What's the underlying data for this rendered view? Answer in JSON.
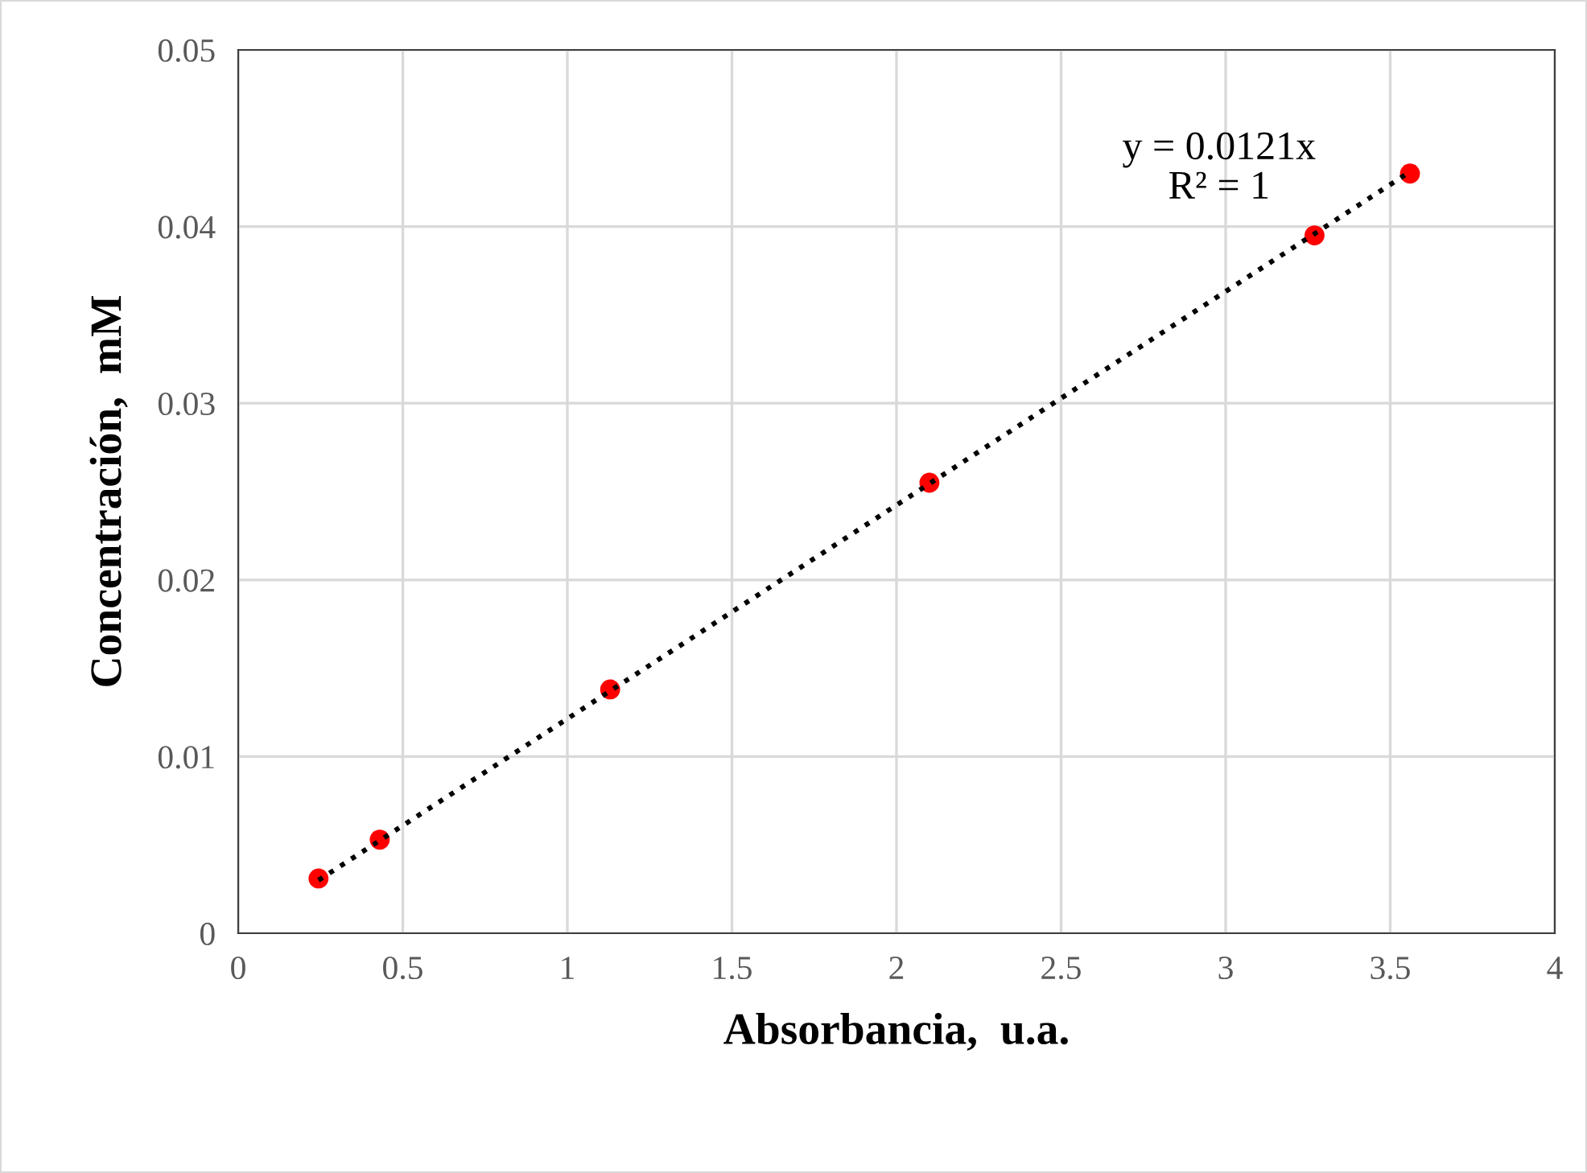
{
  "chart_data": {
    "type": "scatter",
    "xlabel": "Absorbancia,  u.a.",
    "ylabel": "Concentración,  mM",
    "x": [
      0.244,
      0.43,
      1.13,
      2.1,
      3.27,
      3.56
    ],
    "series": [
      {
        "color": "#ff0000",
        "marker": "circle",
        "values": [
          0.0031,
          0.0053,
          0.0138,
          0.0255,
          0.0395,
          0.043
        ]
      },
      {
        "type": "line",
        "color": "#000000",
        "line_style": "dotted",
        "marker": "none",
        "x": [
          0.244,
          3.56
        ],
        "values": [
          0.003,
          0.0431
        ]
      }
    ],
    "annotations": [
      "y = 0.0121x\nR² = 1"
    ],
    "xlim": [
      0,
      4
    ],
    "xticks": [
      0,
      0.5,
      1,
      1.5,
      2,
      2.5,
      3,
      3.5,
      4
    ],
    "ylim": [
      0,
      0.05
    ],
    "yticks": [
      0,
      0.01,
      0.02,
      0.03,
      0.04,
      0.05
    ],
    "grid": true,
    "legend": false
  }
}
